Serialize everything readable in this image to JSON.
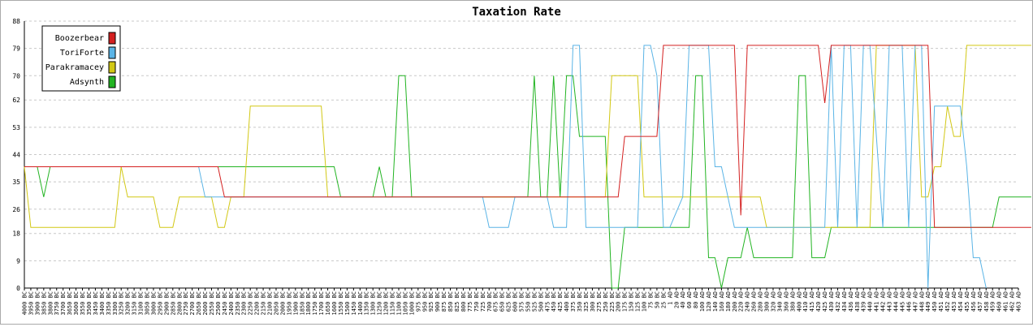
{
  "chart_data": {
    "type": "line",
    "title": "Taxation Rate",
    "xlabel": "",
    "ylabel": "",
    "ylim": [
      0,
      88
    ],
    "yticks": [
      "0",
      "9",
      "18",
      "26",
      "35",
      "44",
      "53",
      "62",
      "70",
      "79",
      "88"
    ],
    "grid": true,
    "legend_position": "top-left",
    "x_labels": [
      "4000 BC",
      "3950 BC",
      "3900 BC",
      "3850 BC",
      "3800 BC",
      "3750 BC",
      "3700 BC",
      "3650 BC",
      "3600 BC",
      "3550 BC",
      "3500 BC",
      "3450 BC",
      "3400 BC",
      "3350 BC",
      "3300 BC",
      "3250 BC",
      "3200 BC",
      "3150 BC",
      "3100 BC",
      "3050 BC",
      "3000 BC",
      "2950 BC",
      "2900 BC",
      "2850 BC",
      "2800 BC",
      "2750 BC",
      "2700 BC",
      "2650 BC",
      "2600 BC",
      "2550 BC",
      "2500 BC",
      "2450 BC",
      "2400 BC",
      "2350 BC",
      "2300 BC",
      "2250 BC",
      "2200 BC",
      "2150 BC",
      "2100 BC",
      "2050 BC",
      "2000 BC",
      "1950 BC",
      "1900 BC",
      "1850 BC",
      "1800 BC",
      "1750 BC",
      "1700 BC",
      "1650 BC",
      "1600 BC",
      "1550 BC",
      "1500 BC",
      "1450 BC",
      "1400 BC",
      "1350 BC",
      "1300 BC",
      "1250 BC",
      "1200 BC",
      "1150 BC",
      "1100 BC",
      "1050 BC",
      "1000 BC",
      "975 BC",
      "950 BC",
      "925 BC",
      "900 BC",
      "875 BC",
      "850 BC",
      "825 BC",
      "800 BC",
      "775 BC",
      "750 BC",
      "725 BC",
      "700 BC",
      "675 BC",
      "650 BC",
      "625 BC",
      "600 BC",
      "575 BC",
      "550 BC",
      "525 BC",
      "500 BC",
      "475 BC",
      "450 BC",
      "425 BC",
      "400 BC",
      "375 BC",
      "350 BC",
      "325 BC",
      "300 BC",
      "275 BC",
      "250 BC",
      "225 BC",
      "200 BC",
      "175 BC",
      "150 BC",
      "125 BC",
      "100 BC",
      "75 BC",
      "50 BC",
      "25 BC",
      "1 AD",
      "20 AD",
      "40 AD",
      "60 AD",
      "80 AD",
      "100 AD",
      "120 AD",
      "140 AD",
      "160 AD",
      "180 AD",
      "200 AD",
      "220 AD",
      "240 AD",
      "260 AD",
      "280 AD",
      "300 AD",
      "320 AD",
      "340 AD",
      "360 AD",
      "380 AD",
      "400 AD",
      "410 AD",
      "415 AD",
      "420 AD",
      "425 AD",
      "430 AD",
      "432 AD",
      "434 AD",
      "436 AD",
      "438 AD",
      "439 AD",
      "440 AD",
      "441 AD",
      "442 AD",
      "443 AD",
      "444 AD",
      "445 AD",
      "446 AD",
      "447 AD",
      "448 AD",
      "449 AD",
      "450 AD",
      "451 AD",
      "452 AD",
      "453 AD",
      "454 AD",
      "455 AD",
      "456 AD",
      "457 AD",
      "458 AD",
      "459 AD",
      "460 AD",
      "461 AD",
      "462 AD",
      "463 AD"
    ],
    "series": [
      {
        "name": "Boozerbear",
        "color": "#d42020",
        "points": [
          [
            0,
            40
          ],
          [
            30,
            40
          ],
          [
            31,
            30
          ],
          [
            33,
            30
          ],
          [
            34,
            30
          ],
          [
            88,
            30
          ],
          [
            89,
            30
          ],
          [
            92,
            30
          ],
          [
            93,
            50
          ],
          [
            98,
            50
          ],
          [
            99,
            80
          ],
          [
            110,
            80
          ],
          [
            111,
            24
          ],
          [
            112,
            80
          ],
          [
            123,
            80
          ],
          [
            124,
            61
          ],
          [
            125,
            80
          ],
          [
            140,
            80
          ],
          [
            141,
            20
          ],
          [
            156,
            20
          ]
        ]
      },
      {
        "name": "ToriForte",
        "color": "#5ab4e6",
        "points": [
          [
            0,
            40
          ],
          [
            2,
            40
          ],
          [
            3,
            40
          ],
          [
            27,
            40
          ],
          [
            28,
            30
          ],
          [
            71,
            30
          ],
          [
            72,
            20
          ],
          [
            75,
            20
          ],
          [
            76,
            30
          ],
          [
            81,
            30
          ],
          [
            82,
            20
          ],
          [
            84,
            20
          ],
          [
            85,
            80
          ],
          [
            86,
            80
          ],
          [
            87,
            20
          ],
          [
            95,
            20
          ],
          [
            96,
            80
          ],
          [
            97,
            80
          ],
          [
            98,
            70
          ],
          [
            99,
            20
          ],
          [
            100,
            20
          ],
          [
            102,
            30
          ],
          [
            103,
            80
          ],
          [
            106,
            80
          ],
          [
            107,
            40
          ],
          [
            108,
            40
          ],
          [
            110,
            20
          ],
          [
            124,
            20
          ],
          [
            125,
            80
          ],
          [
            126,
            20
          ],
          [
            127,
            80
          ],
          [
            128,
            80
          ],
          [
            129,
            20
          ],
          [
            130,
            80
          ],
          [
            131,
            80
          ],
          [
            133,
            20
          ],
          [
            134,
            80
          ],
          [
            135,
            80
          ],
          [
            136,
            80
          ],
          [
            137,
            20
          ],
          [
            138,
            80
          ],
          [
            139,
            80
          ],
          [
            140,
            0
          ],
          [
            141,
            60
          ],
          [
            143,
            60
          ],
          [
            144,
            60
          ],
          [
            145,
            60
          ],
          [
            146,
            40
          ],
          [
            147,
            10
          ],
          [
            148,
            10
          ],
          [
            149,
            0
          ]
        ]
      },
      {
        "name": "Parakramacey",
        "color": "#d2c814",
        "points": [
          [
            0,
            40
          ],
          [
            1,
            20
          ],
          [
            14,
            20
          ],
          [
            15,
            40
          ],
          [
            16,
            30
          ],
          [
            20,
            30
          ],
          [
            21,
            20
          ],
          [
            23,
            20
          ],
          [
            24,
            30
          ],
          [
            28,
            30
          ],
          [
            29,
            30
          ],
          [
            30,
            20
          ],
          [
            31,
            20
          ],
          [
            32,
            30
          ],
          [
            33,
            30
          ],
          [
            34,
            30
          ],
          [
            35,
            60
          ],
          [
            46,
            60
          ],
          [
            47,
            30
          ],
          [
            90,
            30
          ],
          [
            91,
            70
          ],
          [
            95,
            70
          ],
          [
            96,
            30
          ],
          [
            106,
            30
          ],
          [
            107,
            30
          ],
          [
            111,
            30
          ],
          [
            112,
            30
          ],
          [
            113,
            30
          ],
          [
            114,
            30
          ],
          [
            115,
            20
          ],
          [
            131,
            20
          ],
          [
            132,
            80
          ],
          [
            138,
            80
          ],
          [
            139,
            30
          ],
          [
            140,
            30
          ],
          [
            141,
            40
          ],
          [
            142,
            40
          ],
          [
            143,
            60
          ],
          [
            144,
            50
          ],
          [
            145,
            50
          ],
          [
            146,
            80
          ],
          [
            156,
            80
          ]
        ]
      },
      {
        "name": "Adsynth",
        "color": "#22b422",
        "points": [
          [
            0,
            40
          ],
          [
            2,
            40
          ],
          [
            3,
            30
          ],
          [
            4,
            40
          ],
          [
            48,
            40
          ],
          [
            49,
            30
          ],
          [
            54,
            30
          ],
          [
            55,
            40
          ],
          [
            56,
            30
          ],
          [
            57,
            30
          ],
          [
            58,
            70
          ],
          [
            59,
            70
          ],
          [
            60,
            30
          ],
          [
            78,
            30
          ],
          [
            79,
            70
          ],
          [
            80,
            30
          ],
          [
            81,
            30
          ],
          [
            82,
            70
          ],
          [
            83,
            30
          ],
          [
            84,
            70
          ],
          [
            85,
            70
          ],
          [
            86,
            50
          ],
          [
            90,
            50
          ],
          [
            91,
            0
          ],
          [
            92,
            0
          ],
          [
            93,
            20
          ],
          [
            103,
            20
          ],
          [
            104,
            70
          ],
          [
            105,
            70
          ],
          [
            106,
            10
          ],
          [
            107,
            10
          ],
          [
            108,
            0
          ],
          [
            109,
            10
          ],
          [
            111,
            10
          ],
          [
            112,
            20
          ],
          [
            113,
            10
          ],
          [
            119,
            10
          ],
          [
            120,
            70
          ],
          [
            121,
            70
          ],
          [
            122,
            10
          ],
          [
            124,
            10
          ],
          [
            125,
            20
          ],
          [
            150,
            20
          ],
          [
            151,
            30
          ],
          [
            156,
            30
          ]
        ]
      }
    ]
  }
}
